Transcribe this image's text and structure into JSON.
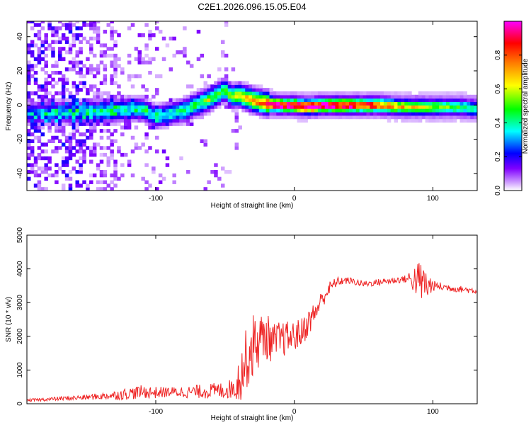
{
  "title": "C2E1.2026.096.15.05.E04",
  "chart_data": [
    {
      "type": "heatmap",
      "title": "C2E1.2026.096.15.05.E04",
      "xlabel": "Height of straight line (km)",
      "ylabel": "Frequency (Hz)",
      "xlim": [
        -193,
        132
      ],
      "ylim": [
        -50,
        49
      ],
      "x_ticks": [
        -100,
        0,
        100
      ],
      "y_ticks": [
        -40,
        -20,
        0,
        20,
        40
      ],
      "x_tick_labels": [
        "-100",
        "0",
        "100"
      ],
      "y_tick_labels": [
        "-40",
        "-20",
        "0",
        "20",
        "40"
      ],
      "colorbar": {
        "label": "Normalized spectral amplitude",
        "range": [
          0,
          1
        ],
        "ticks": [
          0.0,
          0.2,
          0.4,
          0.6,
          0.8
        ],
        "tick_labels": [
          "0.0",
          "0.2",
          "0.4",
          "0.6",
          "0.8"
        ],
        "colormap": [
          "#ffffff",
          "#cc99ff",
          "#7f00ff",
          "#0000ff",
          "#00ffff",
          "#00ff00",
          "#ffff00",
          "#ff7f00",
          "#ff0000",
          "#ff00ff"
        ]
      },
      "ridge": {
        "x": [
          -193,
          -170,
          -150,
          -130,
          -110,
          -100,
          -80,
          -60,
          -50,
          -45,
          -40,
          -30,
          -20,
          -10,
          0,
          10,
          20,
          40,
          60,
          80,
          100,
          120,
          132
        ],
        "frequency": [
          -5,
          -4,
          -4,
          -3,
          -2,
          -7,
          -3,
          4,
          9,
          5,
          6,
          3,
          1,
          0,
          0,
          -1,
          0,
          0,
          0,
          -1,
          -1,
          -1,
          -2
        ],
        "amplitude": [
          0.25,
          0.28,
          0.3,
          0.35,
          0.38,
          0.35,
          0.4,
          0.5,
          0.45,
          0.5,
          0.6,
          0.72,
          0.82,
          0.85,
          0.85,
          0.88,
          0.92,
          0.85,
          0.7,
          0.55,
          0.45,
          0.35,
          0.3
        ]
      }
    },
    {
      "type": "line",
      "xlabel": "Height of straight line (km)",
      "ylabel": "SNR (10 * v/v)",
      "xlim": [
        -193,
        132
      ],
      "ylim": [
        0,
        5000
      ],
      "x_ticks": [
        -100,
        0,
        100
      ],
      "y_ticks": [
        0,
        1000,
        2000,
        3000,
        4000,
        5000
      ],
      "x_tick_labels": [
        "-100",
        "0",
        "100"
      ],
      "y_tick_labels": [
        "0",
        "1000",
        "2000",
        "3000",
        "4000",
        "5000"
      ],
      "color": "#ee2222",
      "series": [
        {
          "name": "SNR",
          "x": [
            -193,
            -180,
            -170,
            -160,
            -150,
            -140,
            -130,
            -120,
            -110,
            -100,
            -90,
            -80,
            -70,
            -60,
            -50,
            -45,
            -40,
            -35,
            -30,
            -25,
            -20,
            -15,
            -10,
            -5,
            0,
            5,
            10,
            15,
            20,
            25,
            30,
            35,
            40,
            50,
            60,
            70,
            80,
            85,
            90,
            95,
            100,
            110,
            120,
            132
          ],
          "y": [
            100,
            130,
            150,
            170,
            190,
            220,
            250,
            300,
            350,
            330,
            350,
            340,
            360,
            380,
            400,
            450,
            700,
            1300,
            1700,
            1900,
            2000,
            1800,
            1900,
            1950,
            2000,
            2100,
            2400,
            2700,
            3100,
            3400,
            3600,
            3650,
            3650,
            3550,
            3600,
            3650,
            3700,
            3700,
            3650,
            3500,
            3500,
            3450,
            3400,
            3350
          ],
          "noise": [
            40,
            50,
            60,
            70,
            80,
            100,
            140,
            180,
            200,
            180,
            150,
            170,
            200,
            230,
            250,
            300,
            700,
            900,
            1000,
            800,
            700,
            600,
            550,
            500,
            450,
            450,
            400,
            350,
            280,
            220,
            150,
            120,
            100,
            100,
            100,
            100,
            110,
            350,
            600,
            600,
            150,
            120,
            100,
            100
          ]
        }
      ]
    }
  ]
}
